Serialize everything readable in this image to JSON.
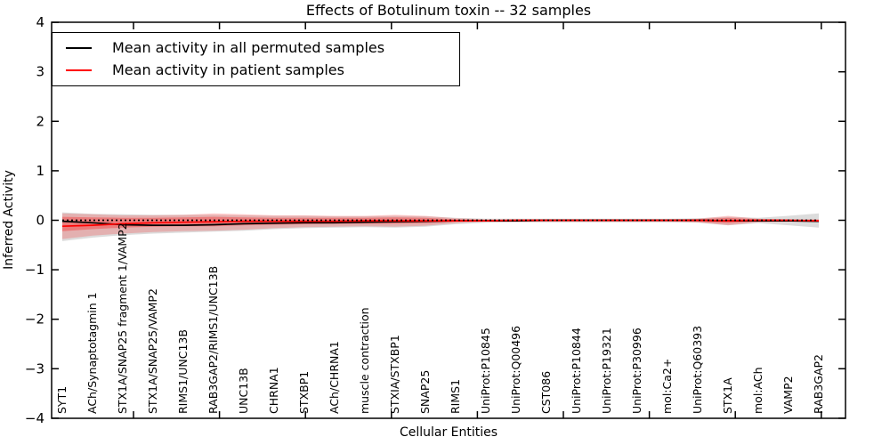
{
  "title": "Effects of Botulinum toxin -- 32 samples",
  "axes": {
    "xlabel": "Cellular Entities",
    "ylabel": "Inferred Activity",
    "ylim": [
      -4,
      4
    ],
    "ytick_labels": [
      "4",
      "3",
      "2",
      "1",
      "0",
      "−1",
      "−2",
      "−3",
      "−4"
    ],
    "yticks": [
      4,
      3,
      2,
      1,
      0,
      -1,
      -2,
      -3,
      -4
    ]
  },
  "legend": {
    "position": "upper left",
    "items": [
      {
        "label": "Mean activity in all permuted samples",
        "color": "#000000"
      },
      {
        "label": "Mean activity in patient samples",
        "color": "#ff0000"
      }
    ]
  },
  "colors": {
    "permuted_line": "#000000",
    "patient_line": "#ff0000",
    "zero_reference_line": "#000000",
    "permuted_band": "#8c8c8c",
    "patient_band": "#ff0000",
    "axis": "#000000",
    "background": "#ffffff"
  },
  "chart_data": {
    "type": "line",
    "title": "Effects of Botulinum toxin -- 32 samples",
    "xlabel": "Cellular Entities",
    "ylabel": "Inferred Activity",
    "ylim": [
      -4,
      4
    ],
    "grid": false,
    "legend_position": "upper left",
    "categories": [
      "SYT1",
      "ACh/Synaptotagmin 1",
      "STX1A/SNAP25 fragment 1/VAMP2",
      "STX1A/SNAP25/VAMP2",
      "RIMS1/UNC13B",
      "RAB3GAP2/RIMS1/UNC13B",
      "UNC13B",
      "CHRNA1",
      "STXBP1",
      "ACh/CHRNA1",
      "muscle contraction",
      "STXIA/STXBP1",
      "SNAP25",
      "RIMS1",
      "UniProt:P10845",
      "UniProt:Q00496",
      "CST086",
      "UniProt:P10844",
      "UniProt:P19321",
      "UniProt:P30996",
      "mol:Ca2+",
      "UniProt:Q60393",
      "STX1A",
      "mol:ACh",
      "VAMP2",
      "RAB3GAP2"
    ],
    "series": [
      {
        "name": "Mean activity in all permuted samples",
        "color": "#000000",
        "style": "solid",
        "values": [
          -0.02,
          -0.05,
          -0.09,
          -0.1,
          -0.1,
          -0.09,
          -0.07,
          -0.06,
          -0.05,
          -0.05,
          -0.04,
          -0.03,
          -0.02,
          -0.01,
          -0.01,
          -0.01,
          0,
          0,
          0,
          0,
          0,
          0,
          -0.01,
          -0.01,
          -0.01,
          -0.02
        ]
      },
      {
        "name": "Mean activity in patient samples",
        "color": "#ff0000",
        "style": "solid",
        "values": [
          -0.12,
          -0.1,
          -0.07,
          -0.05,
          -0.04,
          -0.03,
          -0.02,
          -0.02,
          -0.02,
          -0.02,
          -0.01,
          -0.01,
          -0.01,
          -0.01,
          -0.01,
          0,
          0,
          0,
          0,
          0,
          0,
          0,
          -0.01,
          0,
          0,
          -0.01
        ]
      },
      {
        "name": "zero reference",
        "color": "#000000",
        "style": "dotted",
        "values": [
          0,
          0,
          0,
          0,
          0,
          0,
          0,
          0,
          0,
          0,
          0,
          0,
          0,
          0,
          0,
          0,
          0,
          0,
          0,
          0,
          0,
          0,
          0,
          0,
          0,
          0
        ]
      }
    ],
    "bands": [
      {
        "name": "permuted samples range",
        "color": "#8c8c8c",
        "alpha": 0.3,
        "upper": [
          0.16,
          0.13,
          0.12,
          0.11,
          0.11,
          0.11,
          0.1,
          0.09,
          0.09,
          0.08,
          0.08,
          0.09,
          0.08,
          0.05,
          0.03,
          0.03,
          0.03,
          0.03,
          0.03,
          0.03,
          0.03,
          0.04,
          0.07,
          0.05,
          0.09,
          0.14
        ],
        "lower": [
          -0.42,
          -0.35,
          -0.3,
          -0.27,
          -0.25,
          -0.23,
          -0.21,
          -0.18,
          -0.16,
          -0.15,
          -0.14,
          -0.15,
          -0.13,
          -0.08,
          -0.05,
          -0.04,
          -0.04,
          -0.04,
          -0.04,
          -0.04,
          -0.04,
          -0.05,
          -0.1,
          -0.06,
          -0.1,
          -0.15
        ]
      },
      {
        "name": "patient samples outer band",
        "color": "#ff0000",
        "alpha": 0.2,
        "upper": [
          0.14,
          0.12,
          0.1,
          0.1,
          0.11,
          0.14,
          0.12,
          0.1,
          0.1,
          0.09,
          0.09,
          0.11,
          0.09,
          0.04,
          0.02,
          0.02,
          0.02,
          0.02,
          0.02,
          0.02,
          0.02,
          0.03,
          0.09,
          0.03,
          0.02,
          0.02
        ],
        "lower": [
          -0.38,
          -0.31,
          -0.27,
          -0.24,
          -0.22,
          -0.21,
          -0.19,
          -0.16,
          -0.14,
          -0.13,
          -0.12,
          -0.13,
          -0.11,
          -0.06,
          -0.03,
          -0.03,
          -0.03,
          -0.03,
          -0.03,
          -0.03,
          -0.03,
          -0.04,
          -0.1,
          -0.04,
          -0.03,
          -0.03
        ],
        "fill_between": true
      },
      {
        "name": "patient samples inner band",
        "color": "#ff0000",
        "alpha": 0.3,
        "upper": [
          0.07,
          0.06,
          0.05,
          0.05,
          0.06,
          0.07,
          0.06,
          0.05,
          0.05,
          0.05,
          0.05,
          0.06,
          0.05,
          0.02,
          0.01,
          0.01,
          0.01,
          0.01,
          0.01,
          0.01,
          0.01,
          0.02,
          0.05,
          0.02,
          0.01,
          0.01
        ],
        "lower": [
          -0.22,
          -0.18,
          -0.15,
          -0.13,
          -0.12,
          -0.12,
          -0.1,
          -0.09,
          -0.08,
          -0.07,
          -0.07,
          -0.07,
          -0.06,
          -0.03,
          -0.02,
          -0.02,
          -0.02,
          -0.02,
          -0.02,
          -0.02,
          -0.02,
          -0.03,
          -0.06,
          -0.02,
          -0.02,
          -0.02
        ]
      }
    ]
  }
}
